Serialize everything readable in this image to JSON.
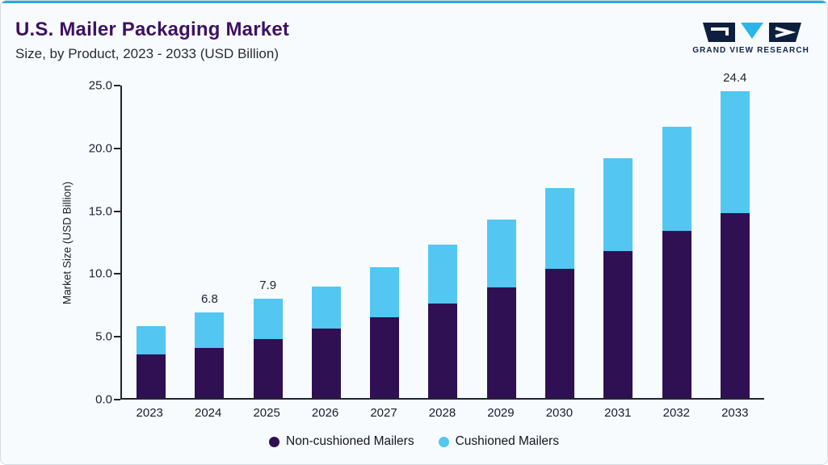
{
  "header": {
    "title": "U.S. Mailer Packaging Market",
    "subtitle": "Size, by Product, 2023 - 2033 (USD Billion)"
  },
  "logo": {
    "text": "GRAND VIEW RESEARCH"
  },
  "colors": {
    "accent_line": "#29a9e1",
    "title": "#3f1161",
    "non_cushioned": "#2f1052",
    "cushioned": "#54c6f2"
  },
  "chart_data": {
    "type": "bar",
    "stacked": true,
    "title": "U.S. Mailer Packaging Market",
    "subtitle": "Size, by Product, 2023 - 2033 (USD Billion)",
    "xlabel": "",
    "ylabel": "Market Size (USD Billion)",
    "ylim": [
      0,
      25
    ],
    "yticks": [
      0.0,
      5.0,
      10.0,
      15.0,
      20.0,
      25.0
    ],
    "grid": false,
    "legend_position": "bottom",
    "categories": [
      "2023",
      "2024",
      "2025",
      "2026",
      "2027",
      "2028",
      "2029",
      "2030",
      "2031",
      "2032",
      "2033"
    ],
    "series": [
      {
        "name": "Non-cushioned Mailers",
        "color": "#2f1052",
        "values": [
          3.5,
          4.0,
          4.7,
          5.5,
          6.4,
          7.5,
          8.8,
          10.3,
          11.7,
          13.3,
          14.7
        ]
      },
      {
        "name": "Cushioned Mailers",
        "color": "#54c6f2",
        "values": [
          2.2,
          2.8,
          3.2,
          3.4,
          4.0,
          4.7,
          5.4,
          6.4,
          7.4,
          8.3,
          9.7
        ]
      }
    ],
    "totals": [
      5.7,
      6.8,
      7.9,
      8.9,
      10.4,
      12.2,
      14.2,
      16.7,
      19.1,
      21.6,
      24.4
    ],
    "totals_labels": [
      "",
      "6.8",
      "7.9",
      "",
      "",
      "",
      "",
      "",
      "",
      "",
      "24.4"
    ]
  }
}
